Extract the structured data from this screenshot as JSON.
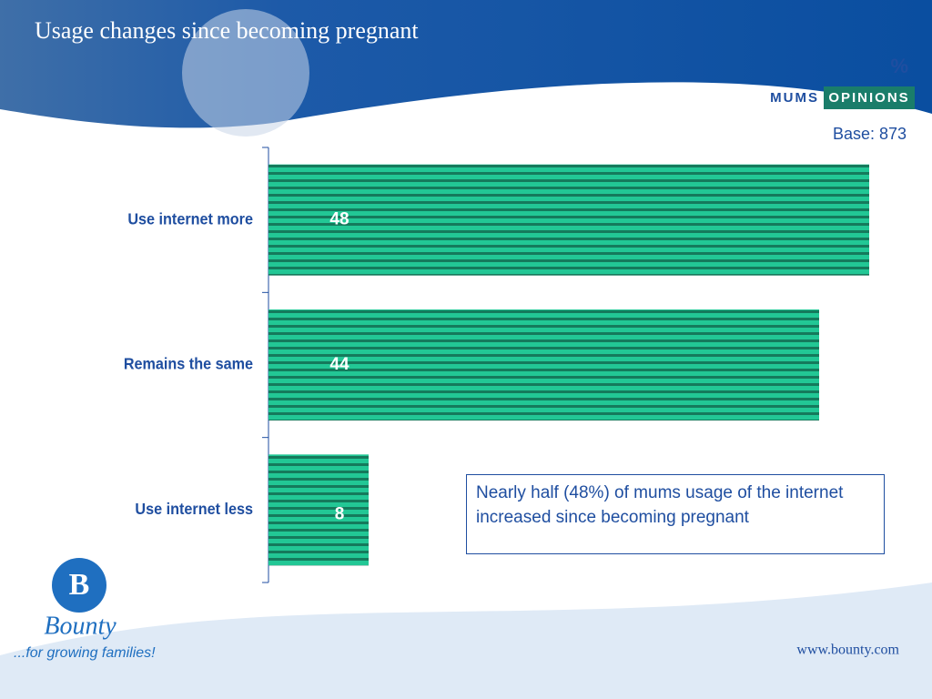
{
  "chart_data": {
    "type": "hbar",
    "title": "Usage changes since becoming pregnant",
    "unit_label": "%",
    "base": "Base: 873",
    "categories": [
      "Use internet more",
      "Remains the same",
      "Use internet less"
    ],
    "values": [
      48,
      44,
      8
    ],
    "color": "#1fbf8f",
    "annotation": "Nearly half (48%) of mums usage of the internet increased since becoming pregnant"
  },
  "branding": {
    "mums": "MUMS",
    "opinions": "OPINIONS",
    "logo_letter": "B",
    "bounty": "Bounty",
    "tagline": "...for growing families!",
    "url": "www.bounty.com"
  }
}
